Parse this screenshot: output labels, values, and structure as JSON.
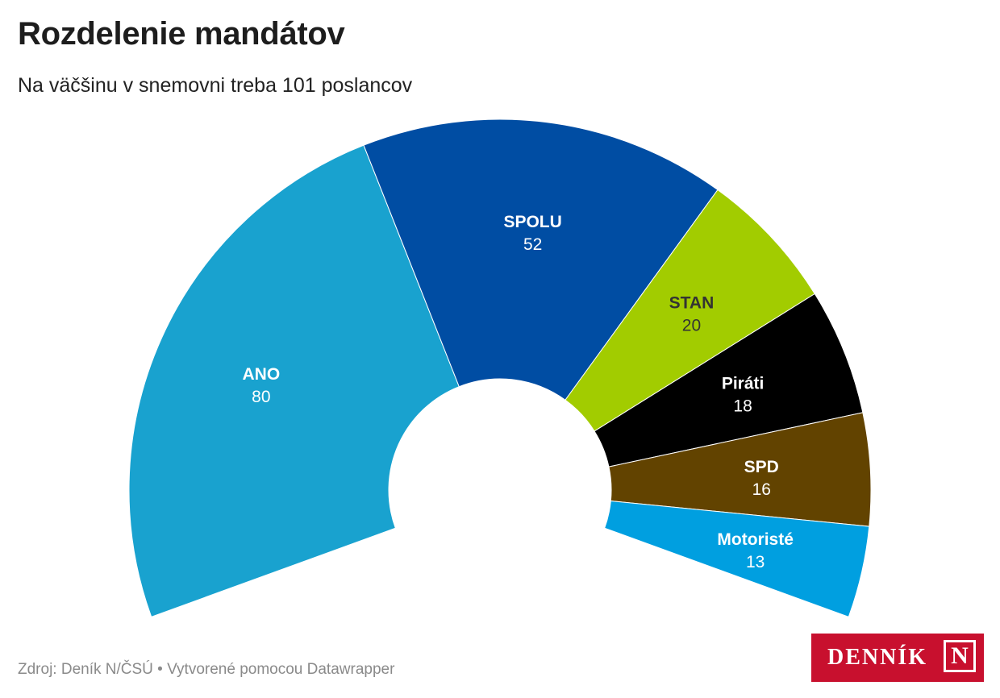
{
  "header": {
    "title": "Rozdelenie mandátov",
    "subtitle": "Na väčšinu v snemovni treba 101 poslancov"
  },
  "footer": {
    "source": "Zdroj: Deník N/ČSÚ • Vytvorené pomocou Datawrapper"
  },
  "logo": {
    "text": "DENNÍK",
    "mark": "N"
  },
  "chart_data": {
    "type": "pie",
    "variant": "parliament-semicircle",
    "title": "Rozdelenie mandátov",
    "subtitle": "Na väčšinu v snemovni treba 101 poslancov",
    "total": 199,
    "categories": [
      "ANO",
      "SPOLU",
      "STAN",
      "Piráti",
      "SPD",
      "Motoristé"
    ],
    "values": [
      80,
      52,
      20,
      18,
      16,
      13
    ],
    "colors": [
      "#19a2cf",
      "#004da3",
      "#a2cc00",
      "#000000",
      "#624300",
      "#009fe0"
    ],
    "label_colors": [
      "#ffffff",
      "#ffffff",
      "#333333",
      "#ffffff",
      "#ffffff",
      "#ffffff"
    ]
  }
}
